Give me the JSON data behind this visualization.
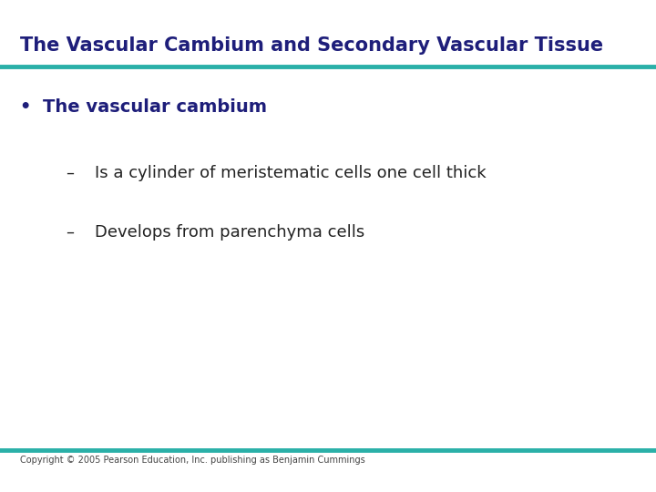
{
  "title": "The Vascular Cambium and Secondary Vascular Tissue",
  "title_color": "#1e1e7a",
  "title_fontsize": 15,
  "line_color": "#2ab0a8",
  "line_thickness": 3.5,
  "bullet_text": "The vascular cambium",
  "bullet_color": "#1e1e7a",
  "bullet_fontsize": 14,
  "sub_items": [
    "Is a cylinder of meristematic cells one cell thick",
    "Develops from parenchyma cells"
  ],
  "sub_fontsize": 13,
  "sub_color": "#222222",
  "copyright": "Copyright © 2005 Pearson Education, Inc. publishing as Benjamin Cummings",
  "copyright_fontsize": 7,
  "copyright_color": "#444444",
  "bg_color": "#ffffff"
}
